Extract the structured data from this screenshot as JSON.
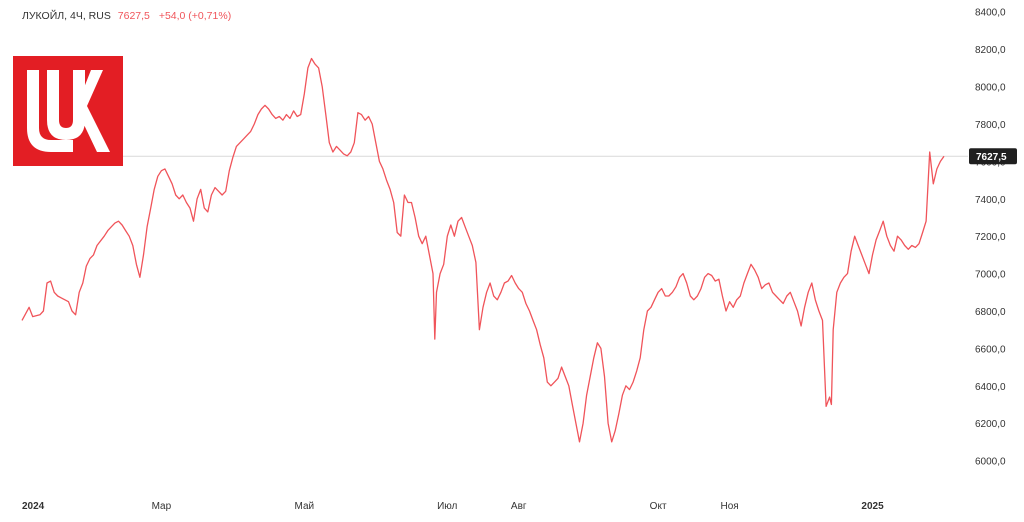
{
  "header": {
    "symbol": "ЛУКОЙЛ, 4Ч, RUS",
    "last_price": "7627,5",
    "change": "+54,0 (+0,71%)"
  },
  "logo": {
    "name": "lukoil-logo",
    "color": "#e31e24"
  },
  "colors": {
    "line": "#f0545a",
    "price_tag": "#1f1f1f",
    "crosshair": "#d9d9d9"
  },
  "price_tag_label": "7627,5",
  "chart_data": {
    "type": "line",
    "ylim": [
      5950,
      8420
    ],
    "y_ticks": [
      "6000,0",
      "6200,0",
      "6400,0",
      "6600,0",
      "6800,0",
      "7000,0",
      "7200,0",
      "7400,0",
      "7600,0",
      "7800,0",
      "8000,0",
      "8200,0",
      "8400,0"
    ],
    "y_tick_values": [
      6000,
      6200,
      6400,
      6600,
      6800,
      7000,
      7200,
      7400,
      7600,
      7800,
      8000,
      8200,
      8400
    ],
    "x_ticks": [
      {
        "label": "2024",
        "bold": true,
        "x": 0
      },
      {
        "label": "Мар",
        "bold": false,
        "x": 39
      },
      {
        "label": "Май",
        "bold": false,
        "x": 79
      },
      {
        "label": "Июл",
        "bold": false,
        "x": 119
      },
      {
        "label": "Авг",
        "bold": false,
        "x": 139
      },
      {
        "label": "Окт",
        "bold": false,
        "x": 178
      },
      {
        "label": "Ноя",
        "bold": false,
        "x": 198
      },
      {
        "label": "2025",
        "bold": true,
        "x": 238
      }
    ],
    "xlim": [
      0,
      258
    ],
    "series": [
      {
        "values": [
          [
            0,
            6750
          ],
          [
            2,
            6820
          ],
          [
            3,
            6770
          ],
          [
            5,
            6780
          ],
          [
            6,
            6800
          ],
          [
            7,
            6950
          ],
          [
            8,
            6960
          ],
          [
            9,
            6900
          ],
          [
            10,
            6880
          ],
          [
            11,
            6870
          ],
          [
            12,
            6860
          ],
          [
            13,
            6850
          ],
          [
            14,
            6800
          ],
          [
            15,
            6780
          ],
          [
            16,
            6900
          ],
          [
            17,
            6950
          ],
          [
            18,
            7040
          ],
          [
            19,
            7080
          ],
          [
            20,
            7100
          ],
          [
            21,
            7150
          ],
          [
            23,
            7200
          ],
          [
            24,
            7230
          ],
          [
            25,
            7250
          ],
          [
            26,
            7270
          ],
          [
            27,
            7280
          ],
          [
            28,
            7260
          ],
          [
            29,
            7230
          ],
          [
            30,
            7200
          ],
          [
            31,
            7150
          ],
          [
            32,
            7050
          ],
          [
            33,
            6980
          ],
          [
            34,
            7100
          ],
          [
            35,
            7250
          ],
          [
            36,
            7350
          ],
          [
            37,
            7450
          ],
          [
            38,
            7520
          ],
          [
            39,
            7550
          ],
          [
            40,
            7560
          ],
          [
            41,
            7520
          ],
          [
            42,
            7480
          ],
          [
            43,
            7420
          ],
          [
            44,
            7400
          ],
          [
            45,
            7420
          ],
          [
            46,
            7380
          ],
          [
            47,
            7350
          ],
          [
            48,
            7280
          ],
          [
            49,
            7400
          ],
          [
            50,
            7450
          ],
          [
            51,
            7350
          ],
          [
            52,
            7330
          ],
          [
            53,
            7420
          ],
          [
            54,
            7460
          ],
          [
            55,
            7440
          ],
          [
            56,
            7420
          ],
          [
            57,
            7440
          ],
          [
            58,
            7550
          ],
          [
            59,
            7620
          ],
          [
            60,
            7680
          ],
          [
            61,
            7700
          ],
          [
            62,
            7720
          ],
          [
            63,
            7740
          ],
          [
            64,
            7760
          ],
          [
            65,
            7800
          ],
          [
            66,
            7850
          ],
          [
            67,
            7880
          ],
          [
            68,
            7900
          ],
          [
            69,
            7880
          ],
          [
            70,
            7850
          ],
          [
            71,
            7830
          ],
          [
            72,
            7840
          ],
          [
            73,
            7820
          ],
          [
            74,
            7850
          ],
          [
            75,
            7830
          ],
          [
            76,
            7870
          ],
          [
            77,
            7840
          ],
          [
            78,
            7850
          ],
          [
            79,
            7960
          ],
          [
            80,
            8100
          ],
          [
            81,
            8150
          ],
          [
            82,
            8120
          ],
          [
            83,
            8100
          ],
          [
            84,
            8000
          ],
          [
            85,
            7850
          ],
          [
            86,
            7700
          ],
          [
            87,
            7650
          ],
          [
            88,
            7680
          ],
          [
            89,
            7660
          ],
          [
            90,
            7640
          ],
          [
            91,
            7630
          ],
          [
            92,
            7650
          ],
          [
            93,
            7700
          ],
          [
            94,
            7860
          ],
          [
            95,
            7850
          ],
          [
            96,
            7820
          ],
          [
            97,
            7840
          ],
          [
            98,
            7800
          ],
          [
            99,
            7700
          ],
          [
            100,
            7600
          ],
          [
            101,
            7560
          ],
          [
            102,
            7500
          ],
          [
            103,
            7450
          ],
          [
            104,
            7380
          ],
          [
            105,
            7220
          ],
          [
            106,
            7200
          ],
          [
            107,
            7420
          ],
          [
            108,
            7380
          ],
          [
            109,
            7380
          ],
          [
            110,
            7300
          ],
          [
            111,
            7200
          ],
          [
            112,
            7160
          ],
          [
            113,
            7200
          ],
          [
            114,
            7100
          ],
          [
            115,
            7000
          ],
          [
            115.5,
            6650
          ],
          [
            116,
            6900
          ],
          [
            117,
            7000
          ],
          [
            118,
            7050
          ],
          [
            119,
            7200
          ],
          [
            120,
            7260
          ],
          [
            121,
            7200
          ],
          [
            122,
            7280
          ],
          [
            123,
            7300
          ],
          [
            124,
            7250
          ],
          [
            125,
            7200
          ],
          [
            126,
            7150
          ],
          [
            127,
            7060
          ],
          [
            128,
            6700
          ],
          [
            129,
            6820
          ],
          [
            130,
            6900
          ],
          [
            131,
            6950
          ],
          [
            132,
            6880
          ],
          [
            133,
            6860
          ],
          [
            134,
            6900
          ],
          [
            135,
            6950
          ],
          [
            136,
            6960
          ],
          [
            137,
            6990
          ],
          [
            138,
            6950
          ],
          [
            139,
            6920
          ],
          [
            140,
            6900
          ],
          [
            141,
            6840
          ],
          [
            142,
            6800
          ],
          [
            143,
            6750
          ],
          [
            144,
            6700
          ],
          [
            145,
            6620
          ],
          [
            146,
            6550
          ],
          [
            147,
            6420
          ],
          [
            148,
            6400
          ],
          [
            149,
            6420
          ],
          [
            150,
            6440
          ],
          [
            151,
            6500
          ],
          [
            152,
            6450
          ],
          [
            153,
            6400
          ],
          [
            154,
            6300
          ],
          [
            155,
            6200
          ],
          [
            156,
            6100
          ],
          [
            157,
            6200
          ],
          [
            158,
            6350
          ],
          [
            159,
            6450
          ],
          [
            160,
            6550
          ],
          [
            161,
            6630
          ],
          [
            162,
            6600
          ],
          [
            163,
            6450
          ],
          [
            164,
            6200
          ],
          [
            165,
            6100
          ],
          [
            166,
            6160
          ],
          [
            167,
            6250
          ],
          [
            168,
            6350
          ],
          [
            169,
            6400
          ],
          [
            170,
            6380
          ],
          [
            171,
            6420
          ],
          [
            172,
            6480
          ],
          [
            173,
            6550
          ],
          [
            174,
            6700
          ],
          [
            175,
            6800
          ],
          [
            176,
            6820
          ],
          [
            177,
            6860
          ],
          [
            178,
            6900
          ],
          [
            179,
            6920
          ],
          [
            180,
            6880
          ],
          [
            181,
            6880
          ],
          [
            182,
            6900
          ],
          [
            183,
            6930
          ],
          [
            184,
            6980
          ],
          [
            185,
            7000
          ],
          [
            186,
            6950
          ],
          [
            187,
            6880
          ],
          [
            188,
            6860
          ],
          [
            189,
            6880
          ],
          [
            190,
            6920
          ],
          [
            191,
            6980
          ],
          [
            192,
            7000
          ],
          [
            193,
            6990
          ],
          [
            194,
            6960
          ],
          [
            195,
            6970
          ],
          [
            196,
            6880
          ],
          [
            197,
            6800
          ],
          [
            198,
            6850
          ],
          [
            199,
            6820
          ],
          [
            200,
            6860
          ],
          [
            201,
            6880
          ],
          [
            202,
            6950
          ],
          [
            203,
            7000
          ],
          [
            204,
            7050
          ],
          [
            205,
            7020
          ],
          [
            206,
            6980
          ],
          [
            207,
            6920
          ],
          [
            208,
            6940
          ],
          [
            209,
            6950
          ],
          [
            210,
            6900
          ],
          [
            211,
            6880
          ],
          [
            212,
            6860
          ],
          [
            213,
            6840
          ],
          [
            214,
            6880
          ],
          [
            215,
            6900
          ],
          [
            216,
            6850
          ],
          [
            217,
            6800
          ],
          [
            218,
            6720
          ],
          [
            219,
            6820
          ],
          [
            220,
            6900
          ],
          [
            221,
            6950
          ],
          [
            222,
            6860
          ],
          [
            223,
            6800
          ],
          [
            224,
            6750
          ],
          [
            225,
            6290
          ],
          [
            226,
            6340
          ],
          [
            226.5,
            6300
          ],
          [
            227,
            6700
          ],
          [
            228,
            6900
          ],
          [
            229,
            6950
          ],
          [
            230,
            6980
          ],
          [
            231,
            7000
          ],
          [
            232,
            7120
          ],
          [
            233,
            7200
          ],
          [
            234,
            7150
          ],
          [
            235,
            7100
          ],
          [
            236,
            7050
          ],
          [
            237,
            7000
          ],
          [
            238,
            7100
          ],
          [
            239,
            7180
          ],
          [
            240,
            7230
          ],
          [
            241,
            7280
          ],
          [
            242,
            7200
          ],
          [
            243,
            7150
          ],
          [
            244,
            7120
          ],
          [
            245,
            7200
          ],
          [
            246,
            7180
          ],
          [
            247,
            7150
          ],
          [
            248,
            7130
          ],
          [
            249,
            7150
          ],
          [
            250,
            7140
          ],
          [
            251,
            7160
          ],
          [
            252,
            7220
          ],
          [
            253,
            7280
          ],
          [
            254,
            7650
          ],
          [
            255,
            7480
          ],
          [
            256,
            7560
          ],
          [
            257,
            7600
          ],
          [
            258,
            7627.5
          ]
        ]
      }
    ]
  }
}
